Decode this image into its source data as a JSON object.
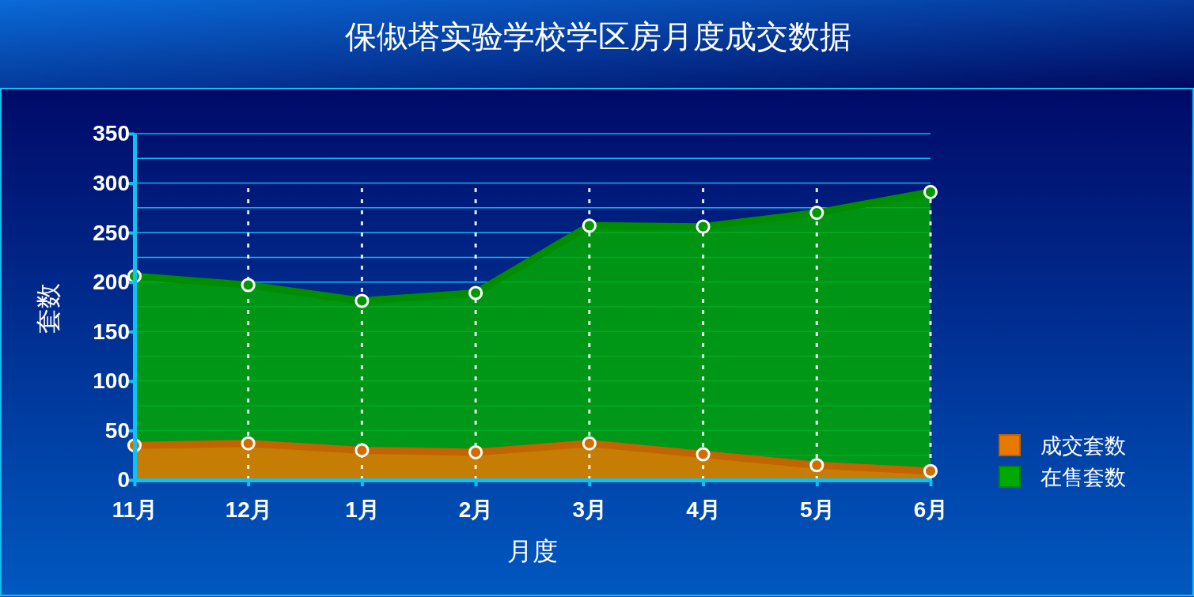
{
  "chart_data": {
    "type": "area",
    "title": "保俶塔实验学校学区房月度成交数据",
    "xlabel": "月度",
    "ylabel": "套数",
    "categories": [
      "11月",
      "12月",
      "1月",
      "2月",
      "3月",
      "4月",
      "5月",
      "6月"
    ],
    "series": [
      {
        "name": "在售套数",
        "color": "#00a800",
        "values": [
          206,
          197,
          181,
          189,
          257,
          256,
          270,
          291
        ]
      },
      {
        "name": "成交套数",
        "color": "#e87800",
        "values": [
          35,
          37,
          30,
          28,
          37,
          26,
          15,
          9
        ]
      }
    ],
    "ylim": [
      0,
      350
    ],
    "yticks": [
      0,
      {
        "value": 25,
        "label": null
      },
      50,
      {
        "value": 75,
        "label": null
      },
      100,
      {
        "value": 125,
        "label": null
      },
      150,
      {
        "value": 175,
        "label": null
      },
      200,
      {
        "value": 225,
        "label": null
      },
      250,
      {
        "value": 275,
        "label": null
      },
      300,
      {
        "value": 325,
        "label": null
      },
      350
    ],
    "grid": true,
    "legend": "right",
    "marker": "circle",
    "line_style": "solid"
  }
}
